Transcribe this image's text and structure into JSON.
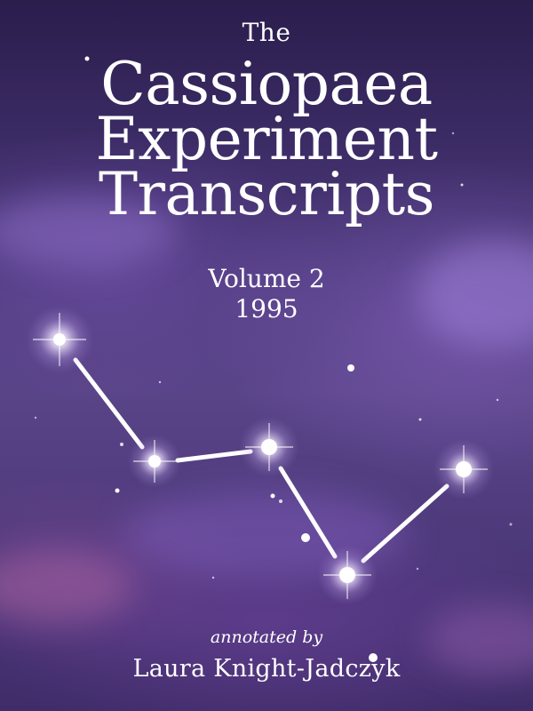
{
  "cover": {
    "title_prefix": "The",
    "title_lines": [
      "Cassiopaea",
      "Experiment",
      "Transcripts"
    ],
    "volume": "Volume 2",
    "year": "1995",
    "annotated_by": "annotated by",
    "author": "Laura Knight-Jadczyk"
  },
  "artwork": {
    "subject": "constellation-cassiopeia",
    "colors": {
      "sky_top": "#2b1d4c",
      "sky_mid": "#5a4488",
      "star": "#ffffff",
      "text": "#ffffff"
    }
  }
}
